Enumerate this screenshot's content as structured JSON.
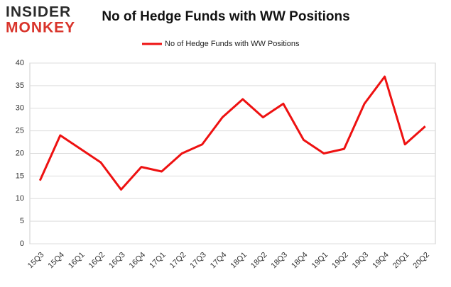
{
  "chart_data": {
    "type": "line",
    "title": "No of Hedge Funds with WW Positions",
    "logo_top": "INSIDER",
    "logo_bottom": "MONKEY",
    "categories": [
      "15Q3",
      "15Q4",
      "16Q1",
      "16Q2",
      "16Q3",
      "16Q4",
      "17Q1",
      "17Q2",
      "17Q3",
      "17Q4",
      "18Q1",
      "18Q2",
      "18Q3",
      "18Q4",
      "19Q1",
      "19Q2",
      "19Q3",
      "19Q4",
      "20Q1",
      "20Q2"
    ],
    "series": [
      {
        "name": "No of Hedge Funds with WW Positions",
        "color": "#ee1111",
        "values": [
          14,
          24,
          21,
          18,
          12,
          17,
          16,
          20,
          22,
          28,
          32,
          28,
          31,
          23,
          20,
          21,
          31,
          37,
          22,
          26
        ]
      }
    ],
    "ylim": [
      0,
      40
    ],
    "yticks": [
      0,
      5,
      10,
      15,
      20,
      25,
      30,
      35,
      40
    ],
    "grid": true,
    "legend": "top"
  }
}
